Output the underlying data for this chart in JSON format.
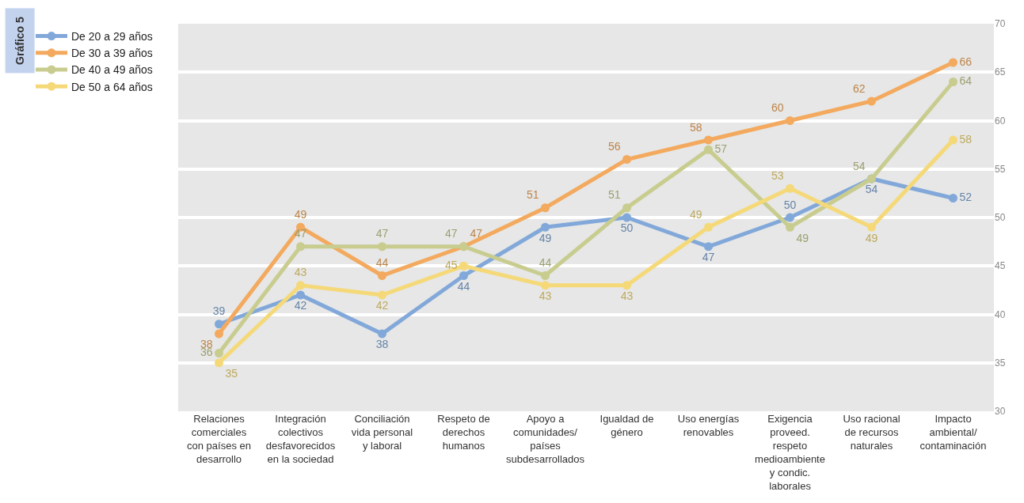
{
  "chart_data": {
    "type": "line",
    "annotations": [
      "Gráfico 5"
    ],
    "categories": [
      "Relaciones comerciales con países en desarrollo",
      "Integración colectivos desfavorecidos en la sociedad",
      "Conciliación vida personal y laboral",
      "Respeto de derechos humanos",
      "Apoyo a comunidades/ países subdesarrollados",
      "Igualdad de género",
      "Uso energías renovables",
      "Exigencia proveed. respeto medioambiente y condic. laborales",
      "Uso racional de recursos naturales",
      "Impacto ambiental/ contaminación"
    ],
    "series": [
      {
        "name": "De 20 a 29 años",
        "color": "#82a8da",
        "values": [
          39,
          42,
          38,
          44,
          49,
          50,
          47,
          50,
          54,
          52
        ]
      },
      {
        "name": "De 30 a 39 años",
        "color": "#f3a95e",
        "values": [
          38,
          49,
          44,
          47,
          51,
          56,
          58,
          60,
          62,
          66
        ]
      },
      {
        "name": "De 40 a 49 años",
        "color": "#c8cc8e",
        "values": [
          36,
          47,
          47,
          47,
          44,
          51,
          57,
          49,
          54,
          64
        ]
      },
      {
        "name": "De 50 a 64 años",
        "color": "#f5d978",
        "values": [
          35,
          43,
          42,
          45,
          43,
          43,
          49,
          53,
          49,
          58
        ]
      }
    ],
    "ylim": [
      30,
      70
    ],
    "yticks": [
      30,
      35,
      40,
      45,
      50,
      55,
      60,
      65,
      70
    ],
    "grid": "y",
    "legend": "left",
    "marker": "circle",
    "line_style": "solid",
    "data_labels": true
  }
}
